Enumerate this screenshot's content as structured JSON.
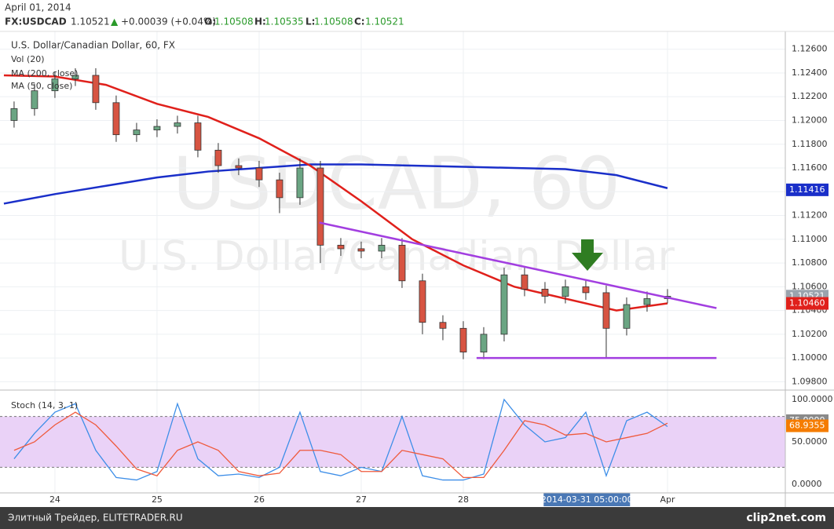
{
  "header": {
    "date": "April 01, 2014",
    "symbol": "FX:USDCAD",
    "last": 1.10521,
    "change": "+0.00039 (+0.04%)",
    "ohlc": [
      {
        "label": "O:",
        "value": 1.10508
      },
      {
        "label": "H:",
        "value": 1.10535
      },
      {
        "label": "L:",
        "value": 1.10508
      },
      {
        "label": "C:",
        "value": 1.10521
      }
    ]
  },
  "footer": {
    "left": "Элитный Трейдер, ELITETRADER.RU",
    "right": "clip2net.com"
  },
  "chart_data": [
    {
      "type": "candlestick",
      "title": "U.S. Dollar/Canadian Dollar, 60, FX",
      "watermark": {
        "symbol": "USDCAD, 60",
        "name": "U.S. Dollar/Canadian Dollar"
      },
      "indicators": [
        "Vol (20)"
      ],
      "x": [
        -0.4,
        -0.2,
        0,
        0.2,
        0.4,
        0.6,
        0.8,
        1.0,
        1.2,
        1.4,
        1.6,
        1.8,
        2.0,
        2.2,
        2.4,
        2.6,
        2.8,
        3.0,
        3.2,
        3.4,
        3.6,
        3.8,
        4.0,
        4.2,
        4.4,
        4.6,
        4.8,
        5.0,
        5.2,
        5.4,
        5.6,
        5.8,
        6.0
      ],
      "open": [
        1.12,
        1.121,
        1.1225,
        1.1235,
        1.1238,
        1.1215,
        1.1188,
        1.1192,
        1.1195,
        1.1198,
        1.1175,
        1.1162,
        1.116,
        1.115,
        1.1135,
        1.116,
        1.1095,
        1.1092,
        1.109,
        1.1095,
        1.1065,
        1.103,
        1.1025,
        1.1005,
        1.102,
        1.107,
        1.1058,
        1.1052,
        1.106,
        1.1055,
        1.1025,
        1.1045,
        1.105
      ],
      "high": [
        1.1216,
        1.1231,
        1.1241,
        1.1244,
        1.1244,
        1.1221,
        1.1198,
        1.1201,
        1.1204,
        1.1204,
        1.1181,
        1.1168,
        1.1166,
        1.1156,
        1.1168,
        1.1166,
        1.1101,
        1.1098,
        1.1101,
        1.1101,
        1.1071,
        1.1036,
        1.1031,
        1.1026,
        1.1076,
        1.1076,
        1.1064,
        1.1066,
        1.1066,
        1.1061,
        1.1051,
        1.1056,
        1.1058
      ],
      "low": [
        1.1194,
        1.1204,
        1.1219,
        1.1229,
        1.1209,
        1.1182,
        1.1182,
        1.1186,
        1.1189,
        1.1169,
        1.1156,
        1.1154,
        1.1144,
        1.1122,
        1.1129,
        1.108,
        1.1086,
        1.1084,
        1.1084,
        1.1059,
        1.102,
        1.1015,
        1.0999,
        1.0999,
        1.1014,
        1.1052,
        1.1046,
        1.1046,
        1.1049,
        1.1,
        1.1019,
        1.1039,
        1.1046
      ],
      "close": [
        1.121,
        1.1225,
        1.1235,
        1.1238,
        1.1215,
        1.1188,
        1.1192,
        1.1195,
        1.1198,
        1.1175,
        1.1162,
        1.116,
        1.115,
        1.1135,
        1.116,
        1.1095,
        1.1092,
        1.109,
        1.1095,
        1.1065,
        1.103,
        1.1025,
        1.1005,
        1.102,
        1.107,
        1.1058,
        1.1052,
        1.106,
        1.1055,
        1.1025,
        1.1045,
        1.105,
        1.1052
      ],
      "up_color": "#6ba583",
      "down_color": "#d75442",
      "lines": [
        {
          "name": "MA (200, close)",
          "color": "#1a2fc9",
          "x": [
            -0.5,
            0,
            0.5,
            1,
            1.5,
            2,
            2.5,
            3,
            3.5,
            4,
            4.5,
            5,
            5.5,
            6
          ],
          "values": [
            1.113,
            1.1138,
            1.1145,
            1.1152,
            1.1157,
            1.116,
            1.1163,
            1.1163,
            1.1162,
            1.1161,
            1.116,
            1.1159,
            1.1154,
            1.1143
          ],
          "last_value": {
            "value": 1.11416,
            "label": "1.11416"
          }
        },
        {
          "name": "MA (50, close)",
          "color": "#e0201b",
          "x": [
            -0.5,
            0,
            0.5,
            1,
            1.5,
            2,
            2.5,
            3,
            3.5,
            4,
            4.5,
            5,
            5.5,
            6
          ],
          "values": [
            1.1238,
            1.1237,
            1.123,
            1.1214,
            1.1203,
            1.1185,
            1.1162,
            1.1132,
            1.11,
            1.1078,
            1.106,
            1.105,
            1.104,
            1.1046
          ],
          "last_value": {
            "value": 1.1046,
            "label": "1.10460"
          }
        }
      ],
      "trendlines": [
        {
          "color": "#a23ee0",
          "x": [
            2.59,
            6.48
          ],
          "values": [
            1.1114,
            1.1042
          ]
        },
        {
          "color": "#a23ee0",
          "x": [
            4.13,
            6.48
          ],
          "values": [
            1.1,
            1.1
          ]
        }
      ],
      "last_price": {
        "value": 1.10521,
        "label": "1.10521"
      },
      "xlim": [
        -0.538,
        7.154
      ],
      "ylim": [
        1.0973,
        1.1275
      ],
      "yticks": [
        {
          "value": 1.126,
          "label": "1.12600"
        },
        {
          "value": 1.124,
          "label": "1.12400"
        },
        {
          "value": 1.122,
          "label": "1.12200"
        },
        {
          "value": 1.12,
          "label": "1.12000"
        },
        {
          "value": 1.118,
          "label": "1.11800"
        },
        {
          "value": 1.116,
          "label": "1.11600"
        },
        {
          "value": 1.114,
          "label": "1.11400"
        },
        {
          "value": 1.112,
          "label": "1.11200"
        },
        {
          "value": 1.11,
          "label": "1.11000"
        },
        {
          "value": 1.108,
          "label": "1.10800"
        },
        {
          "value": 1.106,
          "label": "1.10600"
        },
        {
          "value": 1.104,
          "label": "1.10400"
        },
        {
          "value": 1.102,
          "label": "1.10200"
        },
        {
          "value": 1.1,
          "label": "1.10000"
        },
        {
          "value": 1.098,
          "label": "1.09800"
        }
      ],
      "xticks": [
        {
          "value": 0,
          "label": "24"
        },
        {
          "value": 1,
          "label": "25"
        },
        {
          "value": 2,
          "label": "26"
        },
        {
          "value": 3,
          "label": "27"
        },
        {
          "value": 4,
          "label": "28"
        },
        {
          "value": 6,
          "label": "Apr"
        }
      ],
      "crosshair": {
        "value": 5.21,
        "label": "2014-03-31 05:00:00"
      },
      "grid": true
    },
    {
      "type": "line",
      "title": "Stoch (14, 3, 1)",
      "x": [
        -0.4,
        -0.2,
        0,
        0.2,
        0.4,
        0.6,
        0.8,
        1.0,
        1.2,
        1.4,
        1.6,
        1.8,
        2.0,
        2.2,
        2.4,
        2.6,
        2.8,
        3.0,
        3.2,
        3.4,
        3.6,
        3.8,
        4.0,
        4.2,
        4.4,
        4.6,
        4.8,
        5.0,
        5.2,
        5.4,
        5.6,
        5.8,
        6.0
      ],
      "series": [
        {
          "color": "#3d8ee8",
          "values": [
            30,
            60,
            85,
            95,
            40,
            8,
            5,
            15,
            95,
            30,
            10,
            12,
            8,
            20,
            85,
            15,
            10,
            20,
            15,
            80,
            10,
            5,
            5,
            12,
            100,
            70,
            50,
            55,
            85,
            10,
            75,
            85,
            68
          ]
        },
        {
          "color": "#ef5a3c",
          "values": [
            40,
            50,
            70,
            85,
            70,
            45,
            18,
            10,
            40,
            50,
            40,
            15,
            10,
            13,
            40,
            40,
            35,
            15,
            15,
            40,
            35,
            30,
            8,
            8,
            40,
            75,
            70,
            58,
            60,
            50,
            55,
            60,
            72
          ]
        }
      ],
      "last_labels": [
        {
          "value": 75,
          "label": "75.0000",
          "color": "#8a8a8a"
        },
        {
          "value": 68.9355,
          "label": "68.9355",
          "color": "#f57c00"
        }
      ],
      "bands": [
        20,
        80
      ],
      "band_color": "#ead2f7",
      "xlim": [
        -0.538,
        7.154
      ],
      "ylim": [
        -10.2,
        108.3
      ],
      "yticks": [
        {
          "value": 100,
          "label": "100.0000"
        },
        {
          "value": 50,
          "label": "50.0000"
        },
        {
          "value": 0,
          "label": "0.0000"
        }
      ]
    }
  ]
}
